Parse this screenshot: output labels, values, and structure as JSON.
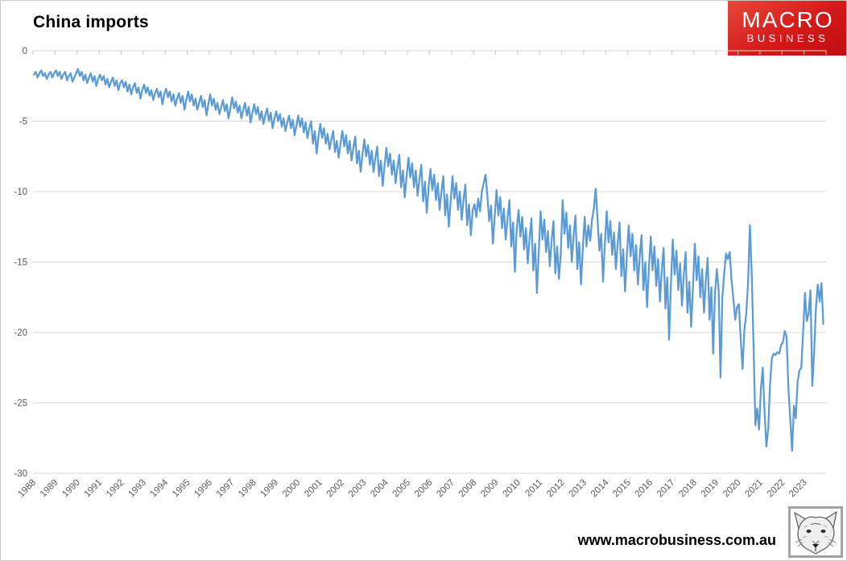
{
  "page": {
    "title": "China imports",
    "footer_url": "www.macrobusiness.com.au"
  },
  "logo": {
    "line1": "MACRO",
    "line2": "BUSINESS",
    "bg_color": "#d31a1a",
    "text_color": "#ffffff"
  },
  "icons": {
    "wolf": "wolf-sketch-icon"
  },
  "chart_data": {
    "type": "line",
    "title": "China imports",
    "series_name": "China imports",
    "series_color": "#5B9BD5",
    "grid_color": "#D9D9D9",
    "tick_color": "#C6C6C6",
    "axis_text_color": "#595959",
    "legend": "none",
    "grid": "horizontal",
    "ylim": [
      -30,
      0
    ],
    "yticks": [
      0,
      -5,
      -10,
      -15,
      -20,
      -25,
      -30
    ],
    "x_labels": [
      "1988",
      "1989",
      "1990",
      "1991",
      "1992",
      "1993",
      "1994",
      "1995",
      "1996",
      "1997",
      "1998",
      "1999",
      "2000",
      "2001",
      "2002",
      "2003",
      "2004",
      "2005",
      "2006",
      "2007",
      "2008",
      "2009",
      "2010",
      "2011",
      "2012",
      "2013",
      "2014",
      "2015",
      "2016",
      "2017",
      "2018",
      "2019",
      "2020",
      "2021",
      "2022",
      "2023"
    ],
    "frequency": "monthly",
    "values": [
      -1.7,
      -1.5,
      -1.9,
      -1.6,
      -1.4,
      -1.8,
      -1.6,
      -2.0,
      -1.7,
      -1.5,
      -1.9,
      -1.6,
      -1.4,
      -1.8,
      -1.5,
      -2.0,
      -1.7,
      -1.5,
      -2.1,
      -1.8,
      -1.6,
      -2.2,
      -1.9,
      -1.6,
      -1.3,
      -1.8,
      -1.5,
      -2.1,
      -1.7,
      -2.3,
      -1.9,
      -1.6,
      -2.2,
      -1.8,
      -2.5,
      -2.0,
      -1.7,
      -2.1,
      -1.8,
      -2.4,
      -2.0,
      -2.6,
      -2.2,
      -1.9,
      -2.5,
      -2.1,
      -2.8,
      -2.3,
      -2.1,
      -2.6,
      -2.2,
      -2.9,
      -2.4,
      -3.1,
      -2.6,
      -2.3,
      -3.0,
      -2.6,
      -3.4,
      -2.8,
      -2.4,
      -3.0,
      -2.6,
      -3.2,
      -2.8,
      -3.5,
      -3.0,
      -2.7,
      -3.3,
      -2.9,
      -3.8,
      -3.1,
      -2.7,
      -3.3,
      -2.9,
      -3.6,
      -3.1,
      -3.9,
      -3.4,
      -3.0,
      -3.7,
      -3.2,
      -4.2,
      -3.5,
      -2.9,
      -3.6,
      -3.1,
      -3.9,
      -3.4,
      -4.2,
      -3.7,
      -3.2,
      -4.0,
      -3.5,
      -4.6,
      -3.8,
      -3.1,
      -3.9,
      -3.4,
      -4.2,
      -3.7,
      -4.5,
      -4.0,
      -3.5,
      -4.3,
      -3.8,
      -4.8,
      -4.1,
      -3.3,
      -4.1,
      -3.6,
      -4.4,
      -3.9,
      -4.8,
      -4.2,
      -3.7,
      -4.6,
      -4.0,
      -5.1,
      -4.4,
      -3.8,
      -4.5,
      -4.0,
      -4.9,
      -4.3,
      -5.2,
      -4.6,
      -4.1,
      -5.0,
      -4.4,
      -5.5,
      -4.8,
      -4.3,
      -5.0,
      -4.5,
      -5.4,
      -4.8,
      -5.7,
      -5.1,
      -4.6,
      -5.5,
      -4.9,
      -6.0,
      -5.3,
      -4.6,
      -5.4,
      -4.8,
      -5.8,
      -5.1,
      -6.2,
      -5.5,
      -5.0,
      -6.6,
      -5.7,
      -7.3,
      -6.1,
      -5.2,
      -6.2,
      -5.5,
      -6.6,
      -5.9,
      -7.0,
      -6.3,
      -5.7,
      -7.2,
      -6.4,
      -7.6,
      -6.6,
      -5.7,
      -6.8,
      -6.0,
      -7.3,
      -6.4,
      -7.8,
      -6.9,
      -6.1,
      -8.0,
      -7.1,
      -8.6,
      -7.3,
      -6.3,
      -7.5,
      -6.7,
      -8.1,
      -7.1,
      -8.6,
      -7.6,
      -6.8,
      -8.9,
      -7.8,
      -9.6,
      -8.1,
      -6.9,
      -8.2,
      -7.3,
      -8.8,
      -7.8,
      -9.4,
      -8.3,
      -7.4,
      -9.7,
      -8.5,
      -10.4,
      -8.9,
      -7.6,
      -9.0,
      -8.0,
      -9.7,
      -8.5,
      -10.3,
      -9.1,
      -8.1,
      -10.7,
      -9.3,
      -11.5,
      -9.7,
      -8.4,
      -9.9,
      -8.8,
      -10.6,
      -9.4,
      -11.3,
      -10.0,
      -8.9,
      -11.7,
      -10.2,
      -12.5,
      -10.7,
      -8.9,
      -10.5,
      -9.4,
      -11.3,
      -10.0,
      -12.0,
      -10.6,
      -9.5,
      -12.4,
      -10.9,
      -13.1,
      -11.3,
      -10.9,
      -11.8,
      -10.5,
      -11.4,
      -10.0,
      -9.4,
      -8.8,
      -10.3,
      -12.1,
      -11.0,
      -13.7,
      -11.8,
      -9.9,
      -11.7,
      -10.4,
      -12.6,
      -11.2,
      -13.4,
      -11.9,
      -10.6,
      -13.9,
      -12.2,
      -15.7,
      -12.6,
      -11.3,
      -13.2,
      -11.8,
      -14.1,
      -12.6,
      -15.1,
      -13.3,
      -11.9,
      -15.6,
      -13.7,
      -17.2,
      -14.2,
      -11.4,
      -13.4,
      -12.0,
      -14.3,
      -12.8,
      -15.3,
      -13.5,
      -12.1,
      -15.8,
      -13.9,
      -16.2,
      -14.4,
      -10.6,
      -13.0,
      -11.5,
      -14.0,
      -12.4,
      -15.0,
      -13.1,
      -11.7,
      -15.5,
      -13.6,
      -16.6,
      -14.0,
      -11.8,
      -13.9,
      -12.4,
      -13.5,
      -12.0,
      -11.2,
      -9.8,
      -11.9,
      -14.2,
      -13.0,
      -16.4,
      -13.7,
      -11.4,
      -13.6,
      -12.1,
      -14.5,
      -12.9,
      -15.5,
      -13.7,
      -12.2,
      -16.0,
      -14.1,
      -17.1,
      -14.5,
      -12.4,
      -14.6,
      -13.0,
      -15.6,
      -13.8,
      -16.6,
      -14.6,
      -13.1,
      -17.0,
      -15.0,
      -18.2,
      -15.4,
      -13.2,
      -15.6,
      -13.9,
      -16.7,
      -14.8,
      -17.8,
      -15.6,
      -14.0,
      -18.3,
      -16.1,
      -20.5,
      -16.5,
      -13.4,
      -15.9,
      -14.2,
      -17.0,
      -15.1,
      -18.1,
      -15.9,
      -14.3,
      -18.6,
      -16.4,
      -19.6,
      -16.8,
      -13.7,
      -16.3,
      -14.6,
      -17.5,
      -15.5,
      -18.6,
      -16.3,
      -14.7,
      -19.1,
      -16.8,
      -21.5,
      -17.2,
      -15.5,
      -17.0,
      -23.2,
      -17.5,
      -15.8,
      -14.4,
      -14.8,
      -14.3,
      -16.3,
      -17.6,
      -19.1,
      -18.2,
      -18.0,
      -20.5,
      -22.6,
      -19.8,
      -18.7,
      -16.5,
      -12.4,
      -15.8,
      -21.0,
      -26.6,
      -25.4,
      -26.9,
      -24.0,
      -22.5,
      -25.7,
      -28.1,
      -26.8,
      -23.6,
      -21.8,
      -21.5,
      -21.6,
      -21.4,
      -21.5,
      -20.9,
      -20.7,
      -19.9,
      -20.3,
      -24.0,
      -26.2,
      -28.4,
      -25.2,
      -26.1,
      -23.5,
      -22.7,
      -22.5,
      -20.0,
      -17.2,
      -19.2,
      -18.6,
      -17.0,
      -23.8,
      -21.4,
      -18.2,
      -16.6,
      -17.8,
      -16.5,
      -19.4
    ]
  }
}
